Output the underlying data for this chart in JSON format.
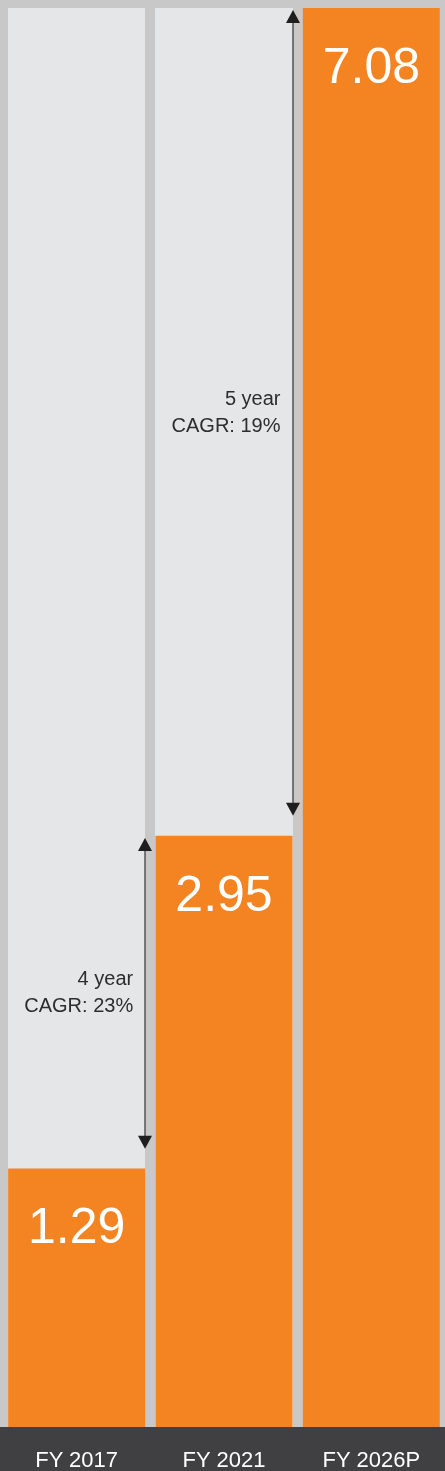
{
  "chart_data": {
    "type": "bar",
    "categories": [
      "FY 2017",
      "FY 2021",
      "FY 2026P"
    ],
    "values": [
      1.29,
      2.95,
      7.08
    ],
    "color": "#f48322",
    "ylim": [
      0,
      7.08
    ],
    "tick_labels": "x",
    "data_labels": true,
    "annotations": [
      "4 year\nCAGR: 23%",
      "5 year\nCAGR: 19%"
    ]
  }
}
